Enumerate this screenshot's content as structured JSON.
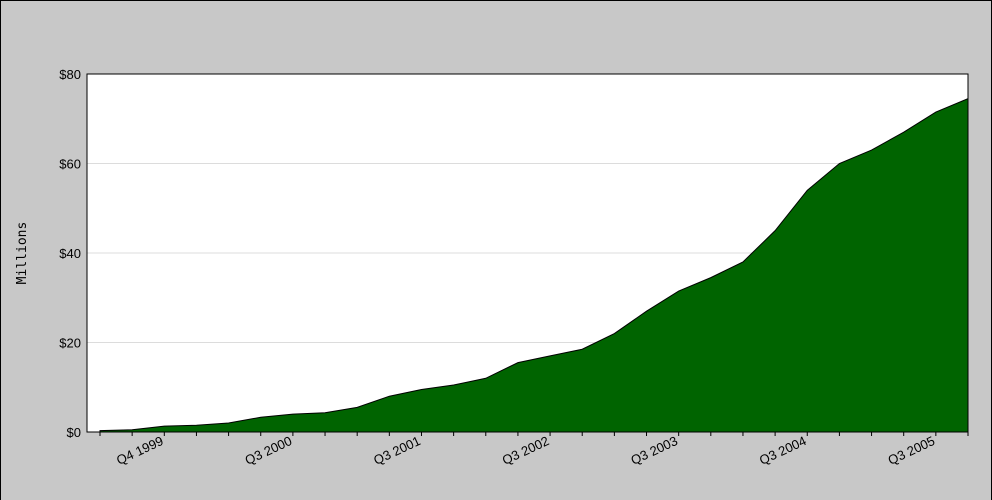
{
  "chart_data": {
    "type": "area",
    "y_label": "Millions",
    "color": "#006400",
    "categories": [
      null,
      null,
      "Q4 1999",
      null,
      null,
      null,
      "Q3 2000",
      null,
      null,
      null,
      "Q3 2001",
      null,
      null,
      null,
      "Q3 2002",
      null,
      null,
      null,
      "Q3 2003",
      null,
      null,
      null,
      "Q3 2004",
      null,
      null,
      null,
      "Q3 2005",
      null
    ],
    "values": [
      0.3,
      0.5,
      1.3,
      1.5,
      2,
      3.3,
      4,
      4.3,
      5.5,
      8,
      9.5,
      10.5,
      12,
      15.5,
      17,
      18.5,
      22,
      27,
      31.5,
      34.5,
      38,
      45,
      54,
      60,
      63,
      67,
      71.5,
      74.5
    ],
    "ylim": [
      0,
      80
    ],
    "yticks": [
      {
        "value": 0,
        "label": "$0"
      },
      {
        "value": 20,
        "label": "$20"
      },
      {
        "value": 40,
        "label": "$40"
      },
      {
        "value": 60,
        "label": "$60"
      },
      {
        "value": 80,
        "label": "$80"
      }
    ],
    "grid": true
  }
}
